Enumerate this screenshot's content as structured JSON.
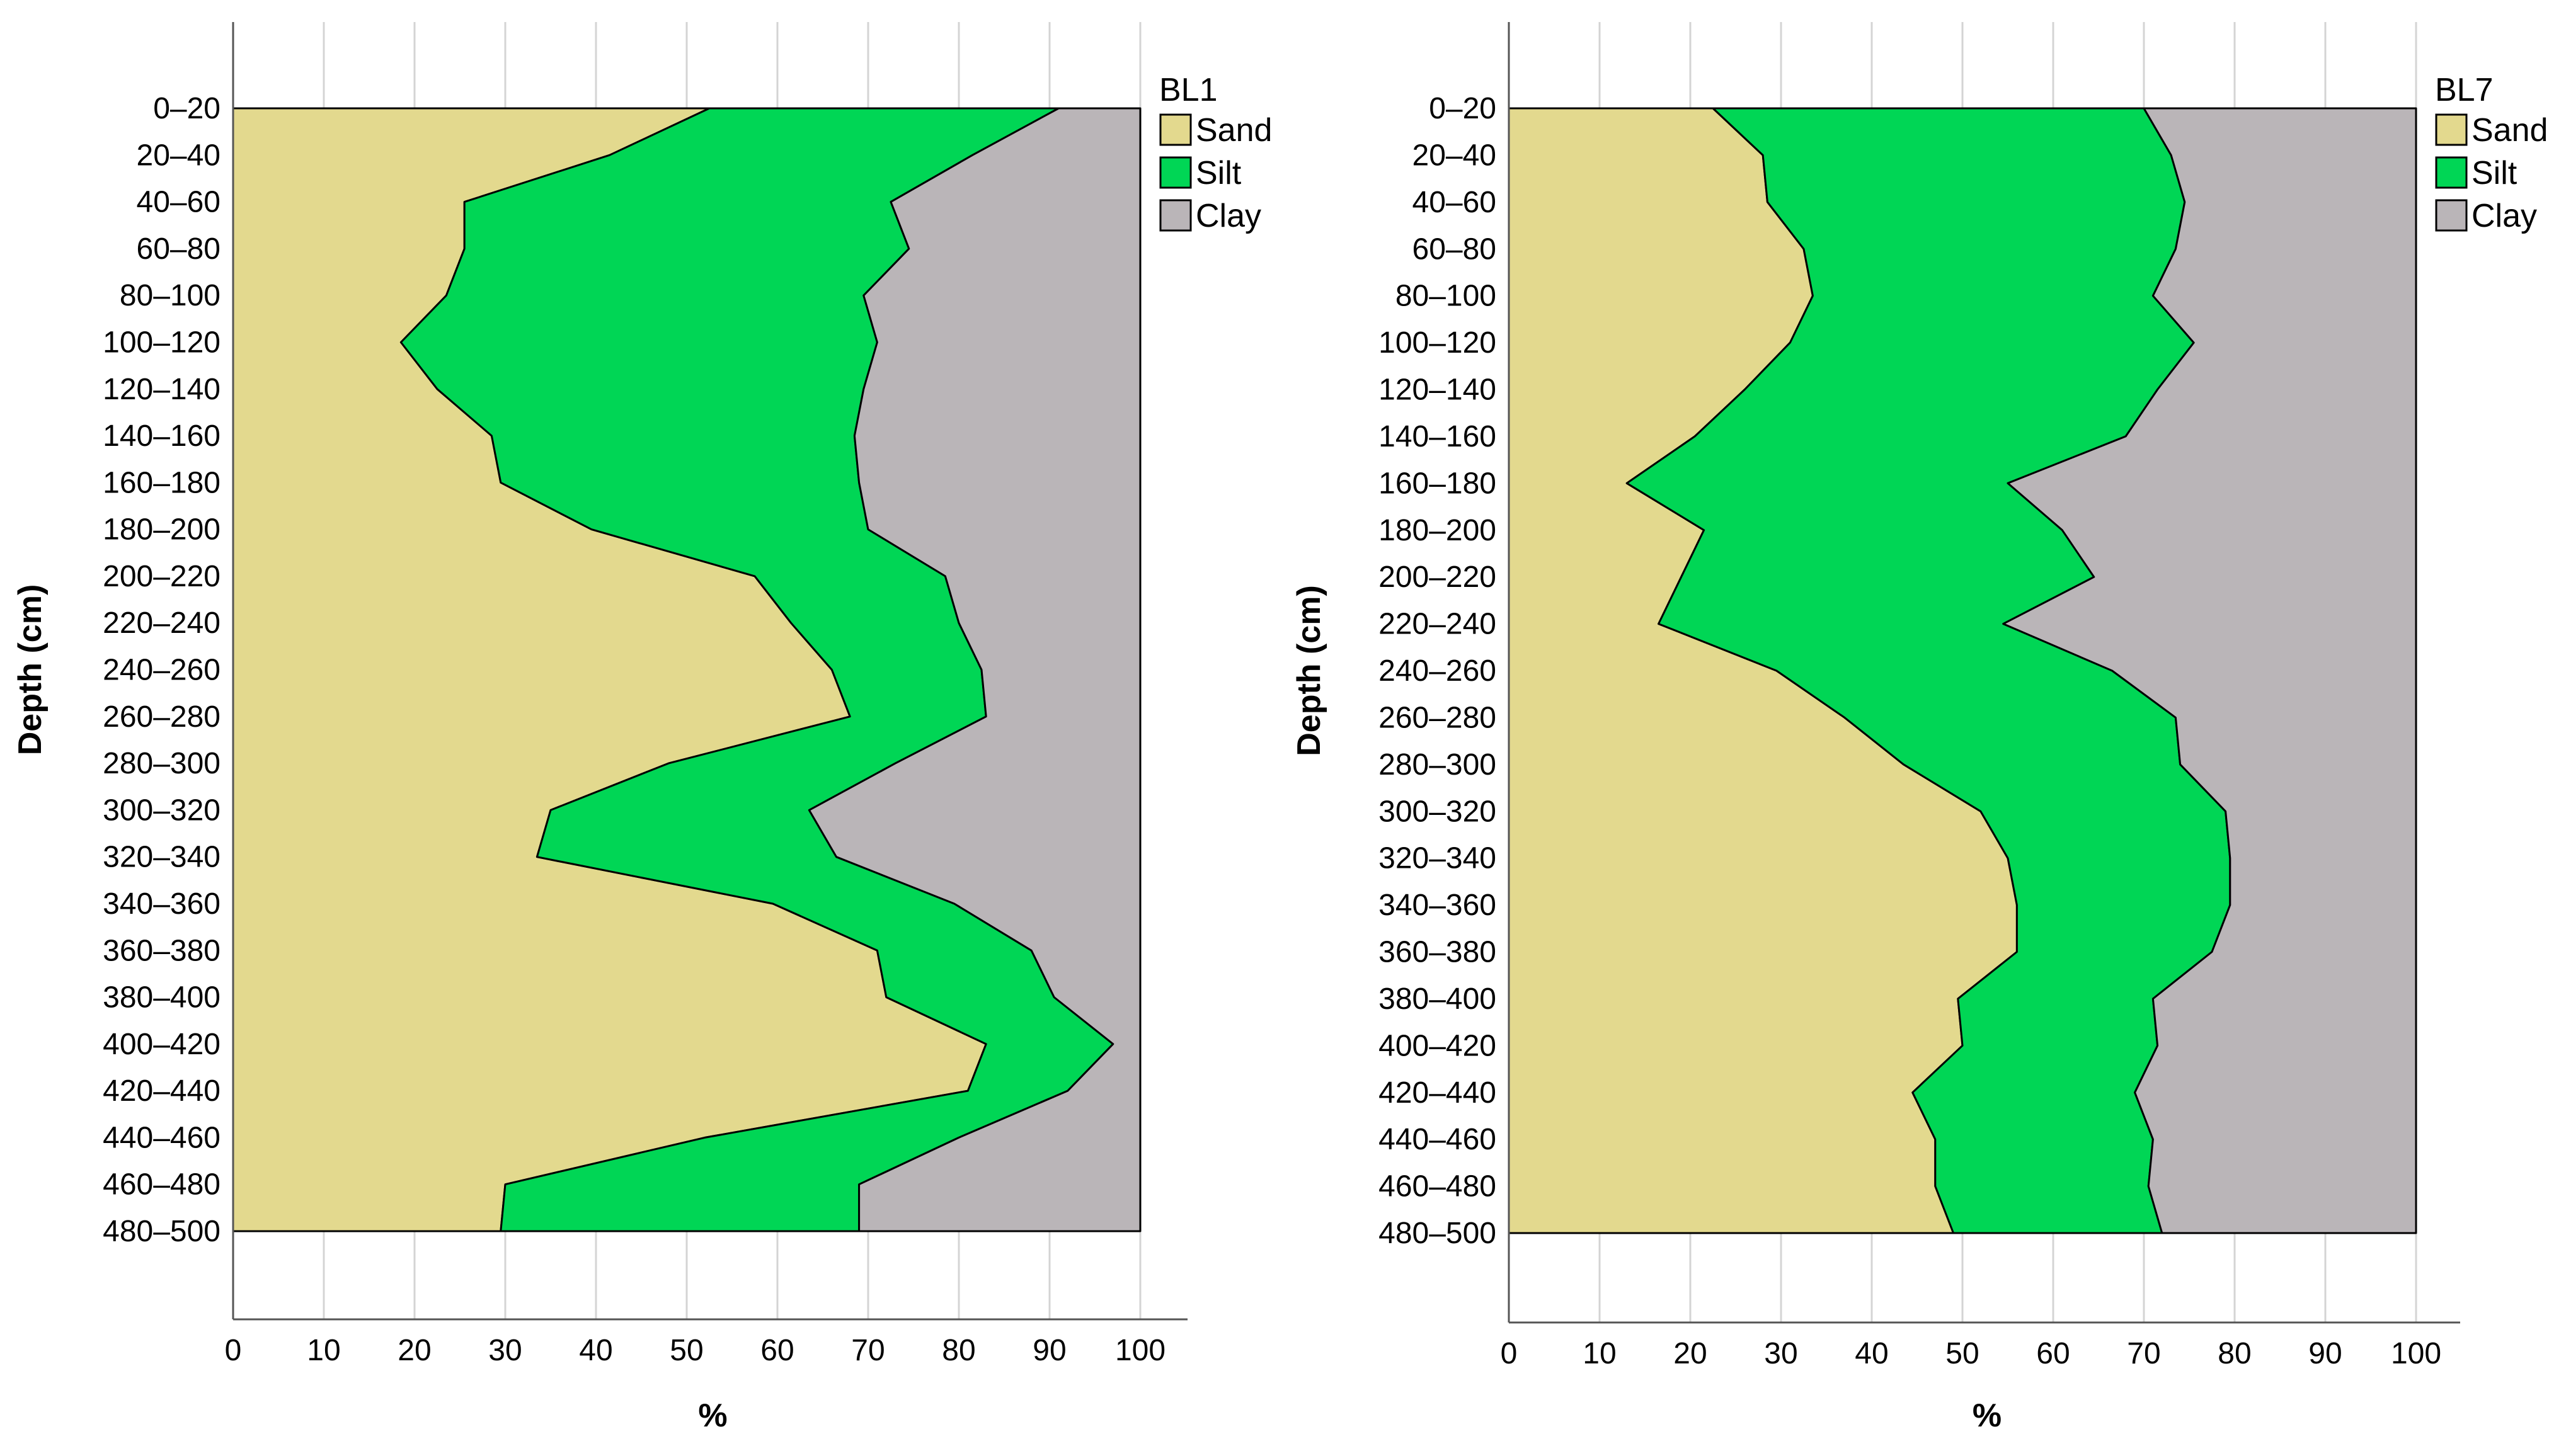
{
  "chart_data": [
    {
      "type": "area",
      "stacked": true,
      "orientation": "horizontal",
      "legend_title": "BL1",
      "legend_position": "top-right",
      "xlabel": "%",
      "ylabel": "Depth (cm)",
      "xlim": [
        0,
        100
      ],
      "x_ticks": [
        "0",
        "10",
        "20",
        "30",
        "40",
        "50",
        "60",
        "70",
        "80",
        "90",
        "100"
      ],
      "grid": "vertical",
      "categories": [
        "0–20",
        "20–40",
        "40–60",
        "60–80",
        "80–100",
        "100–120",
        "120–140",
        "140–160",
        "160–180",
        "180–200",
        "200–220",
        "220–240",
        "240–260",
        "260–280",
        "280–300",
        "300–320",
        "320–340",
        "340–360",
        "360–380",
        "380–400",
        "400–420",
        "420–440",
        "440–460",
        "460–480",
        "480–500"
      ],
      "series": [
        {
          "name": "Sand",
          "color": "#e3d98e",
          "values": [
            52.5,
            41.5,
            25.5,
            25.5,
            23.5,
            18.5,
            22.5,
            28.5,
            29.5,
            39.5,
            57.5,
            61.5,
            66.0,
            68.0,
            48.0,
            35.0,
            33.5,
            59.5,
            71.0,
            72.0,
            83.0,
            81.0,
            52.0,
            30.0,
            29.5
          ]
        },
        {
          "name": "Silt",
          "color": "#00d655",
          "values": [
            38.5,
            40.0,
            47.0,
            49.0,
            46.0,
            52.5,
            47.0,
            40.0,
            39.5,
            30.5,
            21.0,
            18.5,
            16.5,
            15.0,
            25.0,
            28.5,
            33.0,
            20.0,
            17.0,
            18.5,
            14.0,
            11.0,
            28.0,
            39.0,
            39.5
          ]
        },
        {
          "name": "Clay",
          "color": "#bab5b8",
          "values": [
            9.0,
            18.5,
            27.5,
            25.5,
            30.5,
            29.0,
            30.5,
            31.5,
            31.0,
            30.0,
            21.5,
            20.0,
            17.5,
            17.0,
            27.0,
            36.5,
            33.5,
            20.5,
            12.0,
            9.5,
            3.0,
            8.0,
            20.0,
            31.0,
            31.0
          ]
        }
      ]
    },
    {
      "type": "area",
      "stacked": true,
      "orientation": "horizontal",
      "legend_title": "BL7",
      "legend_position": "top-right",
      "xlabel": "%",
      "ylabel": "Depth (cm)",
      "xlim": [
        0,
        100
      ],
      "x_ticks": [
        "0",
        "10",
        "20",
        "30",
        "40",
        "50",
        "60",
        "70",
        "80",
        "90",
        "100"
      ],
      "grid": "vertical",
      "categories": [
        "0–20",
        "20–40",
        "40–60",
        "60–80",
        "80–100",
        "100–120",
        "120–140",
        "140–160",
        "160–180",
        "180–200",
        "200–220",
        "220–240",
        "240–260",
        "260–280",
        "280–300",
        "300–320",
        "320–340",
        "340–360",
        "360–380",
        "380–400",
        "400–420",
        "420–440",
        "440–460",
        "460–480",
        "480–500"
      ],
      "series": [
        {
          "name": "Sand",
          "color": "#e3d98e",
          "values": [
            22.5,
            28.0,
            28.5,
            32.5,
            33.5,
            31.0,
            26.0,
            20.5,
            13.0,
            21.5,
            19.0,
            16.5,
            29.5,
            37.0,
            43.5,
            52.0,
            55.0,
            56.0,
            56.0,
            49.5,
            50.0,
            44.5,
            47.0,
            47.0,
            49.0
          ]
        },
        {
          "name": "Silt",
          "color": "#00d655",
          "values": [
            47.5,
            45.0,
            46.0,
            41.0,
            37.5,
            44.5,
            45.5,
            47.5,
            42.0,
            39.5,
            45.5,
            38.0,
            37.0,
            36.5,
            30.5,
            27.0,
            24.5,
            23.5,
            21.5,
            21.5,
            21.5,
            24.5,
            24.0,
            23.5,
            23.0
          ]
        },
        {
          "name": "Clay",
          "color": "#bab5b8",
          "values": [
            30.0,
            27.0,
            25.5,
            26.5,
            29.0,
            24.5,
            28.5,
            32.0,
            45.0,
            39.0,
            35.5,
            45.5,
            33.5,
            26.5,
            26.0,
            21.0,
            20.5,
            20.5,
            22.5,
            29.0,
            28.5,
            31.0,
            29.0,
            29.5,
            28.0
          ]
        }
      ]
    }
  ]
}
